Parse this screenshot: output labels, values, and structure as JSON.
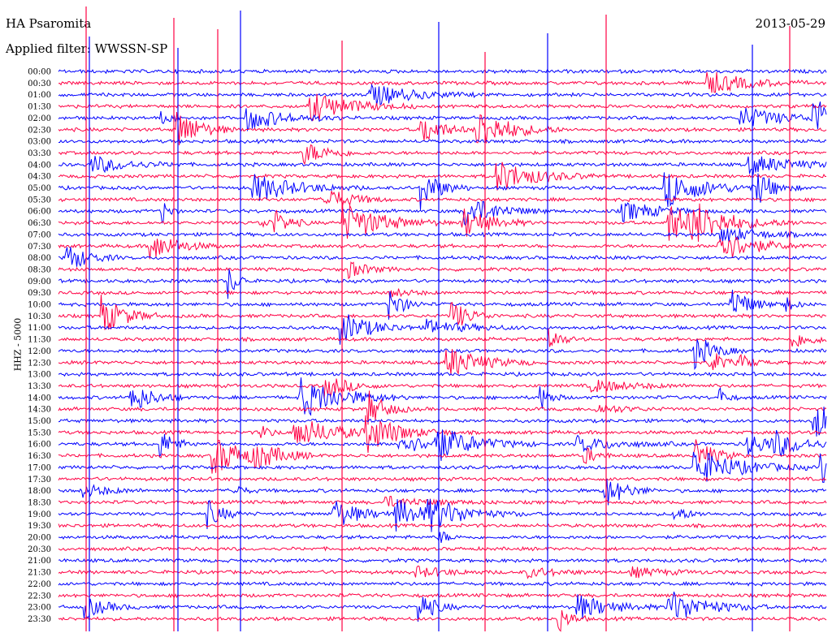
{
  "header": {
    "station": "HA Psaromita",
    "date": "2013-05-29",
    "filter": "Applied filter: WWSSN-SP"
  },
  "colors": {
    "trace_a": "#0000ff",
    "trace_b": "#ff0044",
    "background": "#ffffff"
  },
  "chart_data": {
    "type": "line",
    "title": "HA Psaromita",
    "ylabel": "HHZ - 5000",
    "rows": [
      "00:00",
      "00:30",
      "01:00",
      "01:30",
      "02:00",
      "02:30",
      "03:00",
      "03:30",
      "04:00",
      "04:30",
      "05:00",
      "05:30",
      "06:00",
      "06:30",
      "07:00",
      "07:30",
      "08:00",
      "08:30",
      "09:00",
      "09:30",
      "10:00",
      "10:30",
      "11:00",
      "11:30",
      "12:00",
      "12:30",
      "13:00",
      "13:30",
      "14:00",
      "14:30",
      "15:00",
      "15:30",
      "16:00",
      "16:30",
      "17:00",
      "17:30",
      "18:00",
      "18:30",
      "19:00",
      "19:30",
      "20:00",
      "20:30",
      "21:00",
      "21:30",
      "22:00",
      "22:30",
      "23:00",
      "23:30"
    ],
    "row_minutes": 30,
    "grid": false,
    "series_colors": [
      "blue",
      "red"
    ]
  }
}
